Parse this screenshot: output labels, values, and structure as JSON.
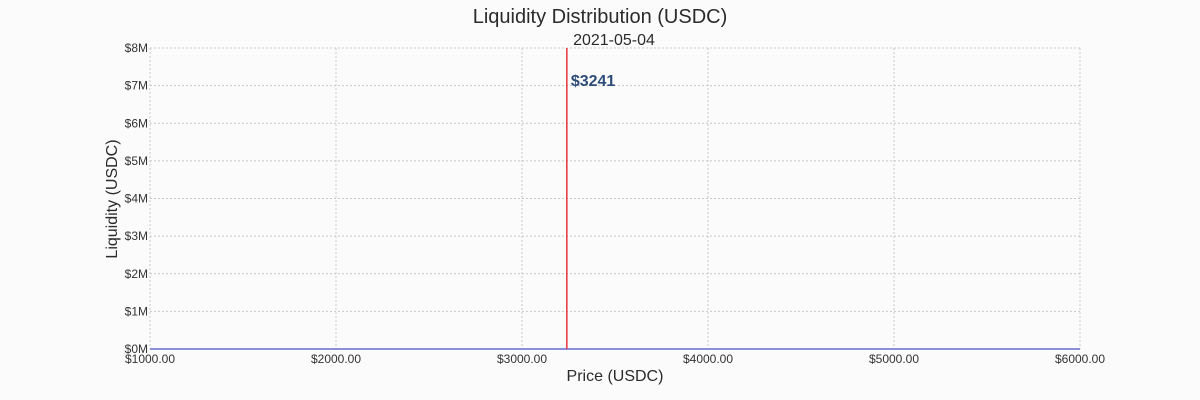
{
  "chart_data": {
    "type": "line",
    "title": "Liquidity Distribution (USDC)",
    "subtitle": "2021-05-04",
    "xlabel": "Price (USDC)",
    "ylabel": "Liquidity (USDC)",
    "xlim": [
      1000,
      6000
    ],
    "ylim": [
      0,
      8000000
    ],
    "x_ticks": [
      1000,
      2000,
      3000,
      4000,
      5000,
      6000
    ],
    "x_tick_labels": [
      "$1000.00",
      "$2000.00",
      "$3000.00",
      "$4000.00",
      "$5000.00",
      "$6000.00"
    ],
    "y_ticks": [
      0,
      1000000,
      2000000,
      3000000,
      4000000,
      5000000,
      6000000,
      7000000,
      8000000
    ],
    "y_tick_labels": [
      "$0M",
      "$1M",
      "$2M",
      "$3M",
      "$4M",
      "$5M",
      "$6M",
      "$7M",
      "$8M"
    ],
    "grid": true,
    "series": [
      {
        "x": [
          1000,
          6000
        ],
        "y": [
          0,
          0
        ],
        "color": "#6a6ad6"
      }
    ],
    "current_price": {
      "value": 3241,
      "label": "$3241",
      "color": "#e8333a",
      "label_color": "#2d4c7a"
    }
  }
}
